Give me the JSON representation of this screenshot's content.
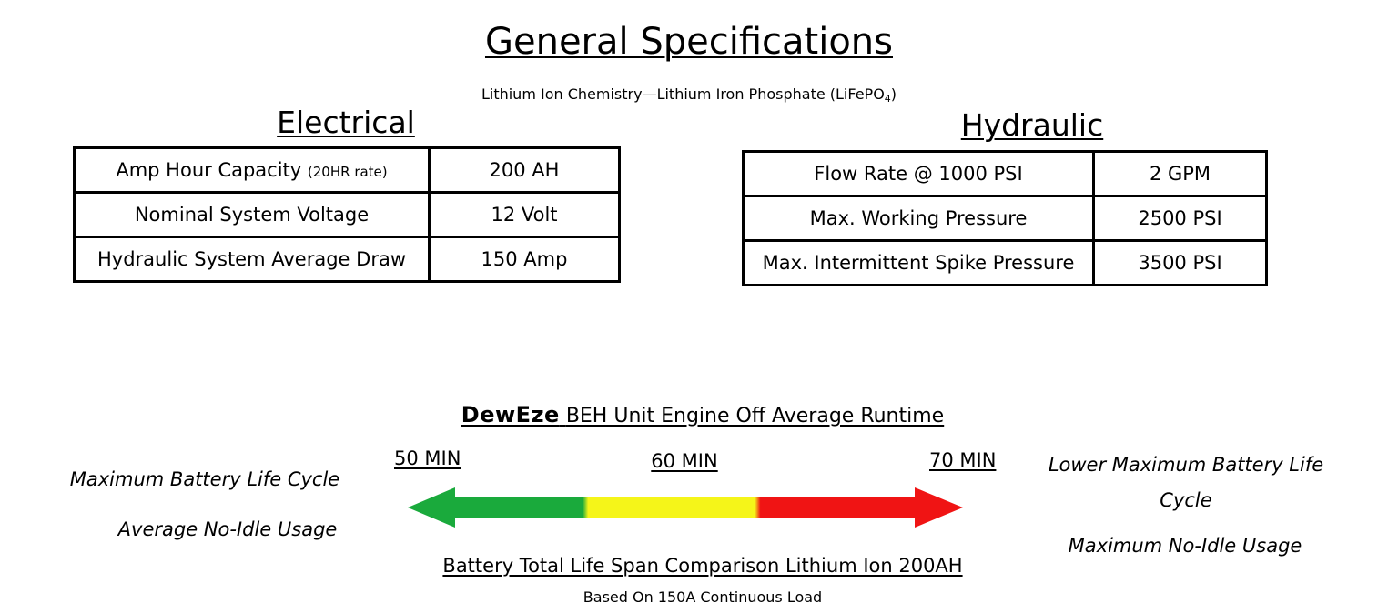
{
  "title": "General Specifications",
  "subtitle": {
    "text": "Lithium Ion Chemistry—Lithium Iron Phosphate (LiFePO",
    "subscript": "4",
    "close": ")"
  },
  "electrical": {
    "heading": "Electrical",
    "rows": [
      {
        "label": "Amp Hour Capacity",
        "note": "(20HR rate)",
        "value": "200 AH"
      },
      {
        "label": "Nominal System Voltage",
        "note": "",
        "value": "12 Volt"
      },
      {
        "label": "Hydraulic System Average Draw",
        "note": "",
        "value": "150 Amp"
      }
    ]
  },
  "hydraulic": {
    "heading": "Hydraulic",
    "rows": [
      {
        "label": "Flow Rate @ 1000 PSI",
        "value": "2 GPM"
      },
      {
        "label": "Max. Working Pressure",
        "value": "2500 PSI"
      },
      {
        "label": "Max. Intermittent Spike Pressure",
        "value": "3500 PSI"
      }
    ]
  },
  "runtime": {
    "brand": "DewEze",
    "title": "BEH Unit Engine Off Average Runtime",
    "min_labels": [
      "50 MIN",
      "60 MIN",
      "70 MIN"
    ],
    "colors": {
      "green": "#1aaa3c",
      "yellow": "#f5f519",
      "red": "#f01414"
    }
  },
  "left_notes": [
    "Maximum Battery Life Cycle",
    "Average No-Idle Usage"
  ],
  "right_notes": [
    "Lower Maximum Battery Life Cycle",
    "Maximum No-Idle Usage"
  ],
  "comparison": "Battery Total Life Span Comparison Lithium Ion 200AH",
  "based_on": "Based On 150A Continuous Load"
}
